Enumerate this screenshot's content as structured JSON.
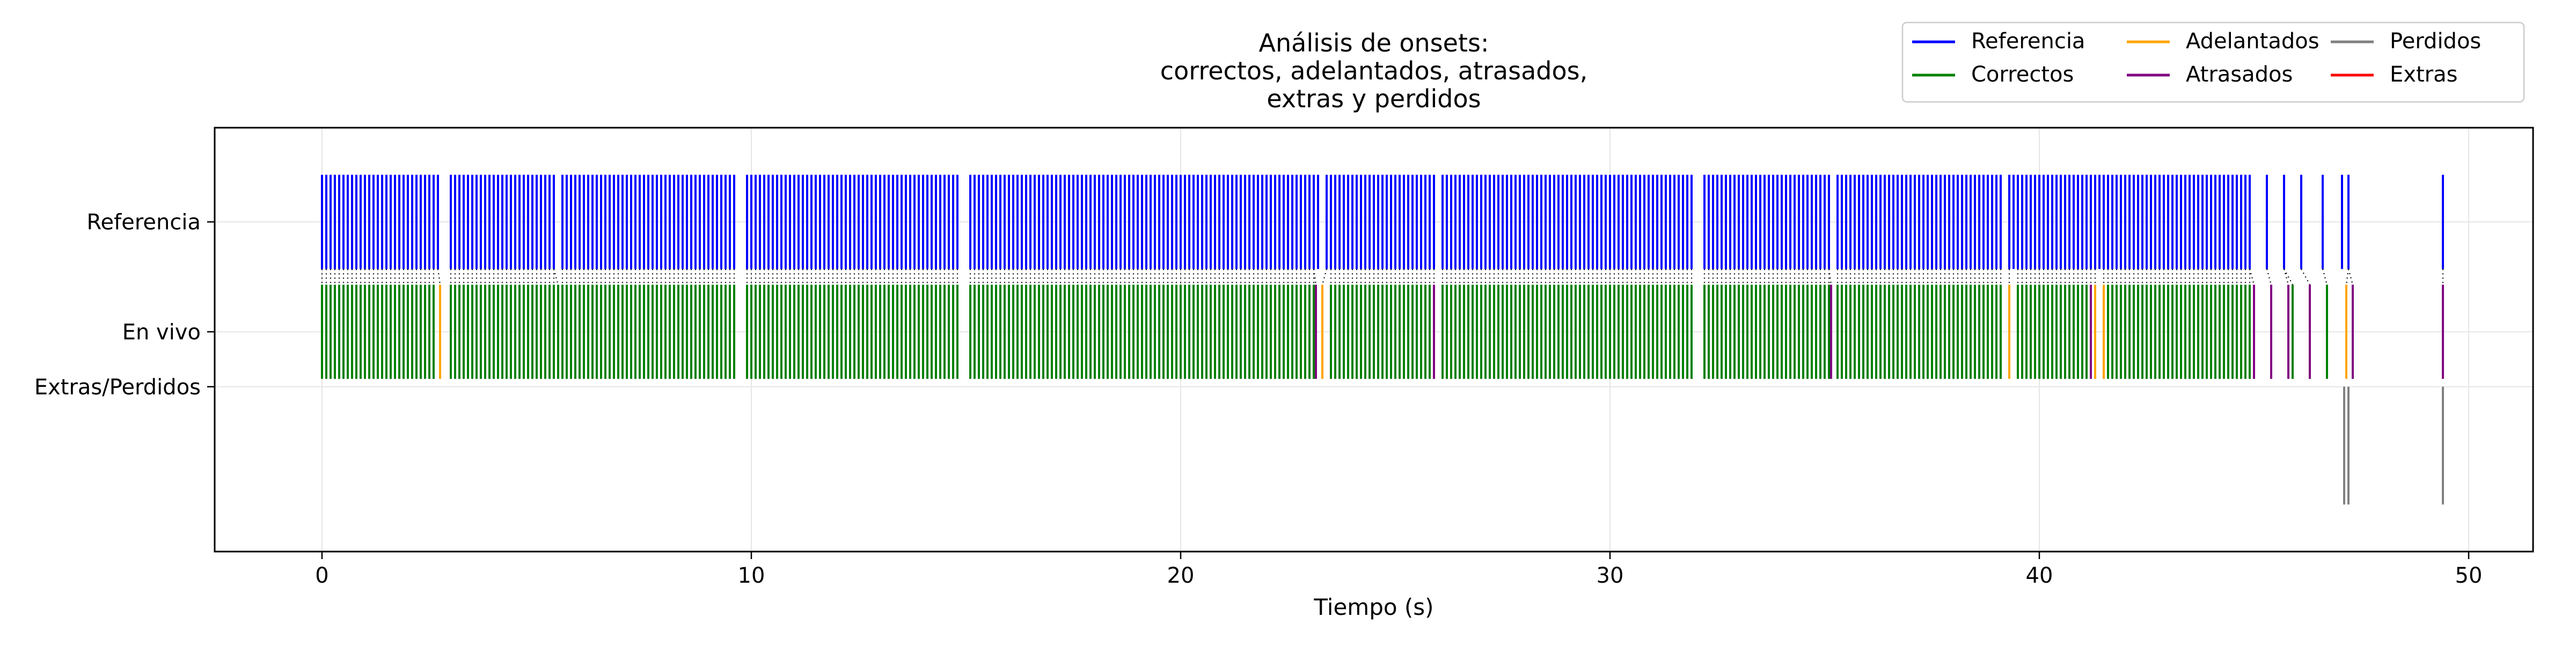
{
  "chart_data": {
    "type": "event-raster",
    "title_lines": [
      "Análisis de onsets:",
      "correctos, adelantados, atrasados,",
      "extras y perdidos"
    ],
    "xlabel": "Tiempo (s)",
    "ylabel": "",
    "xlim": [
      -2.5,
      51.5
    ],
    "ylim": [
      -0.5,
      2.2
    ],
    "x_ticks": [
      0,
      10,
      20,
      30,
      40,
      50
    ],
    "y_ticks": [
      {
        "value": 1.6,
        "label": "Referencia"
      },
      {
        "value": 0.9,
        "label": "En vivo"
      },
      {
        "value": 0.55,
        "label": "Extras/Perdidos"
      }
    ],
    "grid": true,
    "legend_position": "top-right (outside plot, 3 columns)",
    "legend": [
      {
        "label": "Referencia",
        "color": "#0000ff"
      },
      {
        "label": "Correctos",
        "color": "#008000"
      },
      {
        "label": "Adelantados",
        "color": "#ffa500"
      },
      {
        "label": "Atrasados",
        "color": "#800080"
      },
      {
        "label": "Perdidos",
        "color": "#808080"
      },
      {
        "label": "Extras",
        "color": "#ff0000"
      }
    ],
    "rows": {
      "reference": {
        "y_range": [
          1.3,
          1.9
        ]
      },
      "live": {
        "y_range": [
          0.6,
          1.2
        ]
      },
      "missed": {
        "y_range": [
          -0.2,
          0.55
        ]
      }
    },
    "reference_clusters": [
      {
        "start": 0.0,
        "end": 2.75,
        "step": 0.1
      },
      {
        "start": 3.0,
        "end": 5.4,
        "step": 0.1
      },
      {
        "start": 5.6,
        "end": 9.6,
        "step": 0.1
      },
      {
        "start": 9.9,
        "end": 14.8,
        "step": 0.1
      },
      {
        "start": 15.1,
        "end": 23.2,
        "step": 0.1
      },
      {
        "start": 23.4,
        "end": 25.9,
        "step": 0.1
      },
      {
        "start": 26.1,
        "end": 31.9,
        "step": 0.1
      },
      {
        "start": 32.2,
        "end": 35.1,
        "step": 0.1
      },
      {
        "start": 35.3,
        "end": 39.1,
        "step": 0.1
      },
      {
        "start": 39.3,
        "end": 44.9,
        "step": 0.1
      }
    ],
    "reference_sparse": [
      45.3,
      45.7,
      46.1,
      46.6,
      47.05,
      47.2,
      49.4
    ],
    "correct_clusters": [
      {
        "start": 0.0,
        "end": 2.6,
        "step": 0.1
      },
      {
        "start": 3.0,
        "end": 9.6,
        "step": 0.1
      },
      {
        "start": 9.9,
        "end": 14.8,
        "step": 0.1
      },
      {
        "start": 15.1,
        "end": 23.1,
        "step": 0.1
      },
      {
        "start": 23.5,
        "end": 25.8,
        "step": 0.1
      },
      {
        "start": 26.1,
        "end": 31.9,
        "step": 0.1
      },
      {
        "start": 32.2,
        "end": 35.1,
        "step": 0.1
      },
      {
        "start": 35.3,
        "end": 39.1,
        "step": 0.1
      },
      {
        "start": 39.5,
        "end": 41.1,
        "step": 0.1
      },
      {
        "start": 41.6,
        "end": 44.9,
        "step": 0.1
      }
    ],
    "correct_sparse": [
      45.9,
      46.7
    ],
    "early": [
      2.75,
      23.3,
      39.3,
      41.3,
      41.5,
      47.15
    ],
    "late": [
      23.15,
      25.9,
      35.15,
      41.2,
      45.0,
      45.4,
      45.8,
      46.3,
      47.3,
      49.4
    ],
    "missed": [
      47.1,
      47.2,
      49.4
    ],
    "extras": []
  }
}
